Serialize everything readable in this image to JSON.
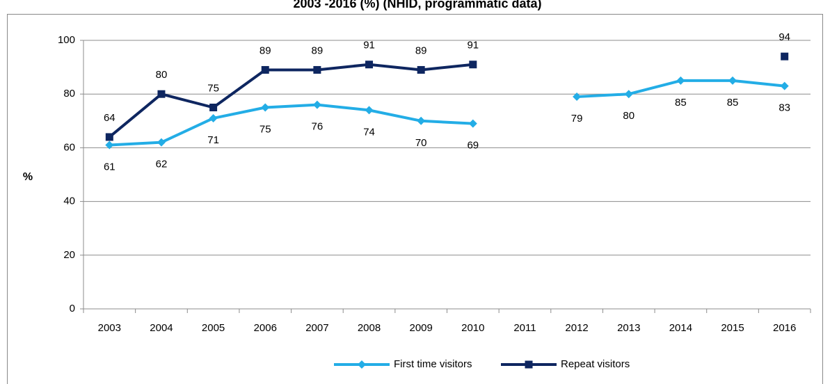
{
  "chart_data": {
    "type": "line",
    "title": "2003 -2016 (%) (NHID, programmatic data)",
    "y_label": "%",
    "categories": [
      "2003",
      "2004",
      "2005",
      "2006",
      "2007",
      "2008",
      "2009",
      "2010",
      "2011",
      "2012",
      "2013",
      "2014",
      "2015",
      "2016"
    ],
    "series": [
      {
        "name": "First time visitors",
        "color": "#23ade6",
        "marker": "diamond",
        "values": [
          61,
          62,
          71,
          75,
          76,
          74,
          70,
          69,
          null,
          79,
          80,
          85,
          85,
          83
        ]
      },
      {
        "name": "Repeat visitors",
        "color": "#0e2660",
        "marker": "square",
        "values": [
          64,
          80,
          75,
          89,
          89,
          91,
          89,
          91,
          null,
          null,
          null,
          null,
          null,
          94
        ]
      }
    ],
    "ylim": [
      0,
      100
    ],
    "yticks": [
      0,
      20,
      40,
      60,
      80,
      100
    ],
    "grid": true,
    "legend": "bottom"
  }
}
